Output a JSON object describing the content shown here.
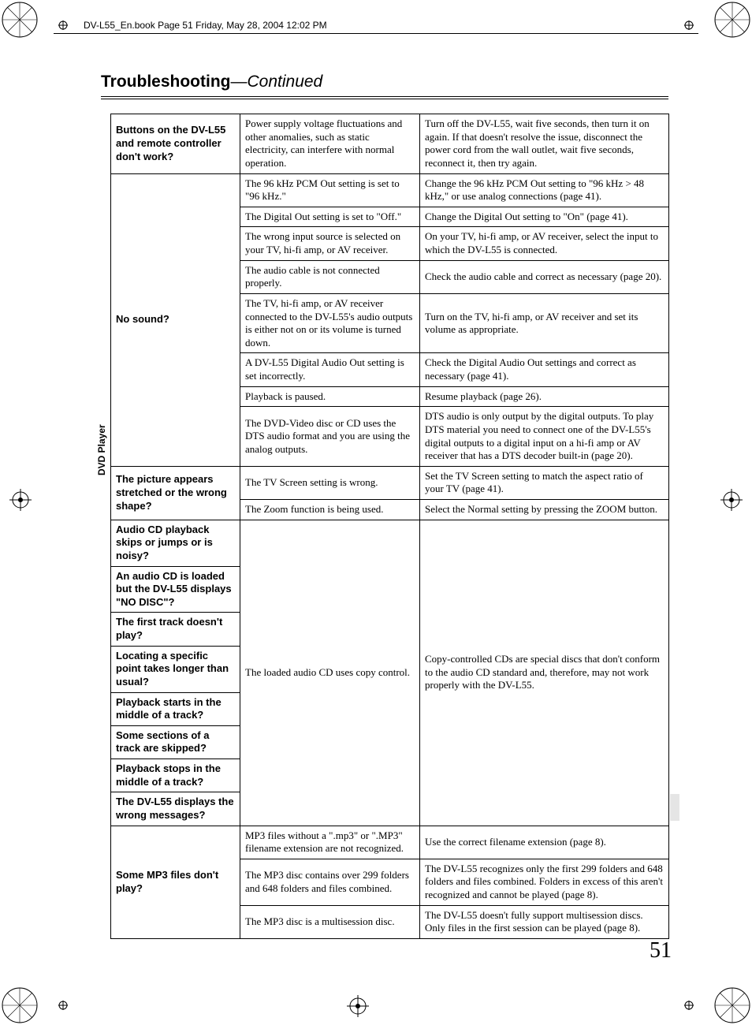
{
  "book_header": "DV-L55_En.book  Page 51  Friday, May 28, 2004  12:02 PM",
  "title_bold": "Troubleshooting",
  "title_sep": "—",
  "title_cont": "Continued",
  "side_label": "DVD Player",
  "page_number": "51",
  "rows": [
    {
      "sym": "Buttons on the DV-L55 and remote controller don't work?",
      "cause": "Power supply voltage fluctuations and other anomalies, such as static electricity, can interfere with normal operation.",
      "fix": "Turn off the DV-L55, wait five seconds, then turn it on again. If that doesn't resolve the issue, disconnect the power cord from the wall outlet, wait five seconds, reconnect it, then try again.",
      "ss": 1,
      "cs": 1,
      "fs": 1
    },
    {
      "sym": "No sound?",
      "cause": "The 96 kHz PCM Out setting is set to \"96 kHz.\"",
      "fix": "Change the 96 kHz PCM Out setting to \"96 kHz > 48 kHz,\" or use analog connections (page 41).",
      "ss": 8,
      "cs": 1,
      "fs": 1
    },
    {
      "cause": "The Digital Out setting is set to \"Off.\"",
      "fix": "Change the Digital Out setting to \"On\" (page 41).",
      "cs": 1,
      "fs": 1
    },
    {
      "cause": "The wrong input source is selected on your TV, hi-fi amp, or AV receiver.",
      "fix": "On your TV, hi-fi amp, or AV receiver, select the input to which the DV-L55 is connected.",
      "cs": 1,
      "fs": 1
    },
    {
      "cause": "The audio cable is not connected properly.",
      "fix": "Check the audio cable and correct as necessary (page 20).",
      "cs": 1,
      "fs": 1
    },
    {
      "cause": "The TV, hi-fi amp, or AV receiver connected to the DV-L55's audio outputs is either not on or its volume is turned down.",
      "fix": "Turn on the TV, hi-fi amp, or AV receiver and set its volume as appropriate.",
      "cs": 1,
      "fs": 1
    },
    {
      "cause": "A DV-L55 Digital Audio Out setting is set incorrectly.",
      "fix": "Check the Digital Audio Out settings and correct as necessary (page 41).",
      "cs": 1,
      "fs": 1
    },
    {
      "cause": "Playback is paused.",
      "fix": "Resume playback (page 26).",
      "cs": 1,
      "fs": 1
    },
    {
      "cause": "The DVD-Video disc or CD uses the DTS audio format and you are using the analog outputs.",
      "fix": "DTS audio is only output by the digital outputs. To play DTS material you need to connect one of the DV-L55's digital outputs to a digital input on a hi-fi amp or AV receiver that has a DTS decoder built-in (page 20).",
      "cs": 1,
      "fs": 1
    },
    {
      "sym": "The picture appears stretched or the wrong shape?",
      "cause": "The TV Screen setting is wrong.",
      "fix": "Set the TV Screen setting to match the aspect ratio of your TV (page 41).",
      "ss": 2,
      "cs": 1,
      "fs": 1
    },
    {
      "cause": "The Zoom function is being used.",
      "fix": "Select the Normal setting by pressing the ZOOM button.",
      "cs": 1,
      "fs": 1
    },
    {
      "sym": "Audio CD playback skips or jumps or is noisy?",
      "cause": "The loaded audio CD uses copy control.",
      "fix": "Copy-controlled CDs are special discs that don't conform to the audio CD standard and, therefore, may not work properly with the DV-L55.",
      "ss": 1,
      "cs": 8,
      "fs": 8
    },
    {
      "sym": "An audio CD is loaded but the DV-L55 displays \"NO DISC\"?",
      "ss": 1
    },
    {
      "sym": "The first track doesn't play?",
      "ss": 1
    },
    {
      "sym": "Locating a specific point takes longer than usual?",
      "ss": 1
    },
    {
      "sym": "Playback starts in the middle of a track?",
      "ss": 1
    },
    {
      "sym": "Some sections of a track are skipped?",
      "ss": 1
    },
    {
      "sym": "Playback stops in the middle of a track?",
      "ss": 1
    },
    {
      "sym": "The DV-L55 displays the wrong messages?",
      "ss": 1
    },
    {
      "sym": "Some MP3 files don't play?",
      "cause": "MP3 files without a \".mp3\" or \".MP3\" filename extension are not recognized.",
      "fix": "Use the correct filename extension (page 8).",
      "ss": 3,
      "cs": 1,
      "fs": 1
    },
    {
      "cause": "The MP3 disc contains over 299 folders and 648 folders and files combined.",
      "fix": "The DV-L55 recognizes only the first 299 folders and 648 folders and files combined. Folders in excess of this aren't recognized and cannot be played (page 8).",
      "cs": 1,
      "fs": 1
    },
    {
      "cause": "The MP3 disc is a multisession disc.",
      "fix": "The DV-L55 doesn't fully support multisession discs. Only files in the first session can be played (page 8).",
      "cs": 1,
      "fs": 1
    }
  ]
}
